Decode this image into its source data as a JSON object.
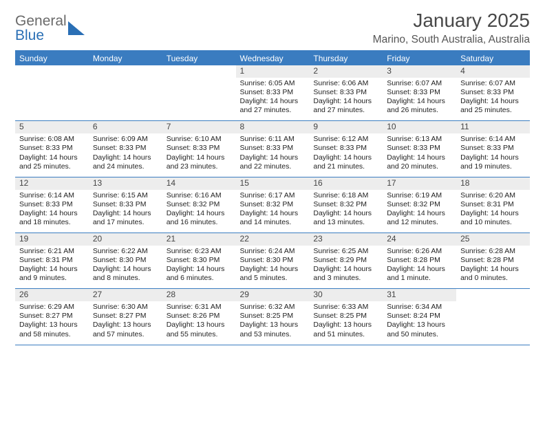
{
  "logo": {
    "word1": "General",
    "word2": "Blue"
  },
  "brand_colors": {
    "blue": "#3a7cc0",
    "grey": "#6a6a6a",
    "row_bg": "#ededed"
  },
  "title": "January 2025",
  "location": "Marino, South Australia, Australia",
  "weekdays": [
    "Sunday",
    "Monday",
    "Tuesday",
    "Wednesday",
    "Thursday",
    "Friday",
    "Saturday"
  ],
  "first_weekday_index": 3,
  "days": [
    {
      "n": 1,
      "sunrise": "6:05 AM",
      "sunset": "8:33 PM",
      "daylight": "14 hours and 27 minutes."
    },
    {
      "n": 2,
      "sunrise": "6:06 AM",
      "sunset": "8:33 PM",
      "daylight": "14 hours and 27 minutes."
    },
    {
      "n": 3,
      "sunrise": "6:07 AM",
      "sunset": "8:33 PM",
      "daylight": "14 hours and 26 minutes."
    },
    {
      "n": 4,
      "sunrise": "6:07 AM",
      "sunset": "8:33 PM",
      "daylight": "14 hours and 25 minutes."
    },
    {
      "n": 5,
      "sunrise": "6:08 AM",
      "sunset": "8:33 PM",
      "daylight": "14 hours and 25 minutes."
    },
    {
      "n": 6,
      "sunrise": "6:09 AM",
      "sunset": "8:33 PM",
      "daylight": "14 hours and 24 minutes."
    },
    {
      "n": 7,
      "sunrise": "6:10 AM",
      "sunset": "8:33 PM",
      "daylight": "14 hours and 23 minutes."
    },
    {
      "n": 8,
      "sunrise": "6:11 AM",
      "sunset": "8:33 PM",
      "daylight": "14 hours and 22 minutes."
    },
    {
      "n": 9,
      "sunrise": "6:12 AM",
      "sunset": "8:33 PM",
      "daylight": "14 hours and 21 minutes."
    },
    {
      "n": 10,
      "sunrise": "6:13 AM",
      "sunset": "8:33 PM",
      "daylight": "14 hours and 20 minutes."
    },
    {
      "n": 11,
      "sunrise": "6:14 AM",
      "sunset": "8:33 PM",
      "daylight": "14 hours and 19 minutes."
    },
    {
      "n": 12,
      "sunrise": "6:14 AM",
      "sunset": "8:33 PM",
      "daylight": "14 hours and 18 minutes."
    },
    {
      "n": 13,
      "sunrise": "6:15 AM",
      "sunset": "8:33 PM",
      "daylight": "14 hours and 17 minutes."
    },
    {
      "n": 14,
      "sunrise": "6:16 AM",
      "sunset": "8:32 PM",
      "daylight": "14 hours and 16 minutes."
    },
    {
      "n": 15,
      "sunrise": "6:17 AM",
      "sunset": "8:32 PM",
      "daylight": "14 hours and 14 minutes."
    },
    {
      "n": 16,
      "sunrise": "6:18 AM",
      "sunset": "8:32 PM",
      "daylight": "14 hours and 13 minutes."
    },
    {
      "n": 17,
      "sunrise": "6:19 AM",
      "sunset": "8:32 PM",
      "daylight": "14 hours and 12 minutes."
    },
    {
      "n": 18,
      "sunrise": "6:20 AM",
      "sunset": "8:31 PM",
      "daylight": "14 hours and 10 minutes."
    },
    {
      "n": 19,
      "sunrise": "6:21 AM",
      "sunset": "8:31 PM",
      "daylight": "14 hours and 9 minutes."
    },
    {
      "n": 20,
      "sunrise": "6:22 AM",
      "sunset": "8:30 PM",
      "daylight": "14 hours and 8 minutes."
    },
    {
      "n": 21,
      "sunrise": "6:23 AM",
      "sunset": "8:30 PM",
      "daylight": "14 hours and 6 minutes."
    },
    {
      "n": 22,
      "sunrise": "6:24 AM",
      "sunset": "8:30 PM",
      "daylight": "14 hours and 5 minutes."
    },
    {
      "n": 23,
      "sunrise": "6:25 AM",
      "sunset": "8:29 PM",
      "daylight": "14 hours and 3 minutes."
    },
    {
      "n": 24,
      "sunrise": "6:26 AM",
      "sunset": "8:28 PM",
      "daylight": "14 hours and 1 minute."
    },
    {
      "n": 25,
      "sunrise": "6:28 AM",
      "sunset": "8:28 PM",
      "daylight": "14 hours and 0 minutes."
    },
    {
      "n": 26,
      "sunrise": "6:29 AM",
      "sunset": "8:27 PM",
      "daylight": "13 hours and 58 minutes."
    },
    {
      "n": 27,
      "sunrise": "6:30 AM",
      "sunset": "8:27 PM",
      "daylight": "13 hours and 57 minutes."
    },
    {
      "n": 28,
      "sunrise": "6:31 AM",
      "sunset": "8:26 PM",
      "daylight": "13 hours and 55 minutes."
    },
    {
      "n": 29,
      "sunrise": "6:32 AM",
      "sunset": "8:25 PM",
      "daylight": "13 hours and 53 minutes."
    },
    {
      "n": 30,
      "sunrise": "6:33 AM",
      "sunset": "8:25 PM",
      "daylight": "13 hours and 51 minutes."
    },
    {
      "n": 31,
      "sunrise": "6:34 AM",
      "sunset": "8:24 PM",
      "daylight": "13 hours and 50 minutes."
    }
  ],
  "labels": {
    "sunrise": "Sunrise:",
    "sunset": "Sunset:",
    "daylight": "Daylight:"
  }
}
